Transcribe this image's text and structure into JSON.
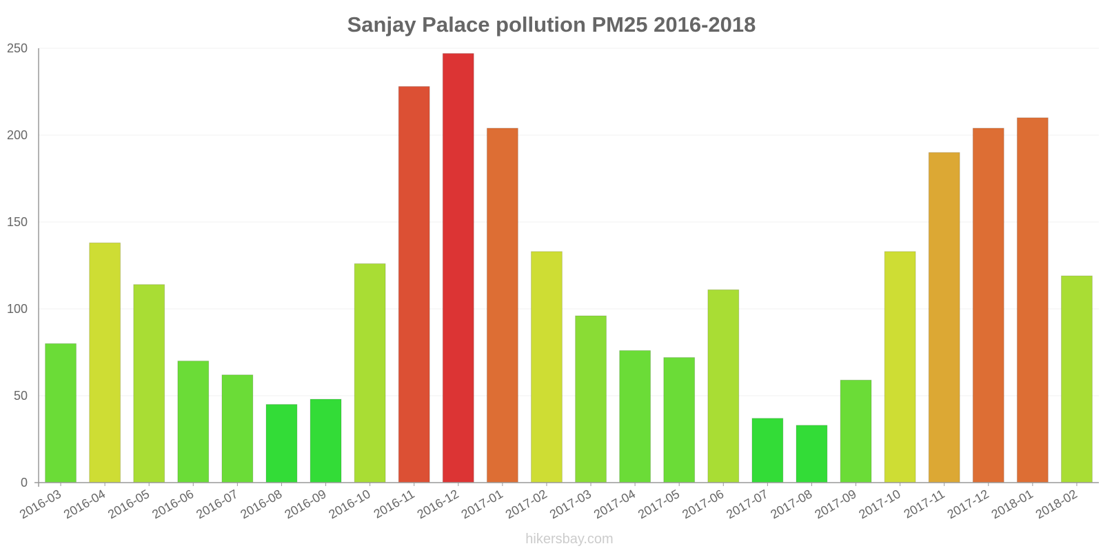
{
  "chart_data": {
    "type": "bar",
    "title": "Sanjay Palace pollution PM25 2016-2018",
    "xlabel": "",
    "ylabel": "",
    "ylim": [
      0,
      250
    ],
    "yticks": [
      0,
      50,
      100,
      150,
      200,
      250
    ],
    "grid": true,
    "legend": "none",
    "categories": [
      "2016-03",
      "2016-04",
      "2016-05",
      "2016-06",
      "2016-07",
      "2016-08",
      "2016-09",
      "2016-10",
      "2016-11",
      "2016-12",
      "2017-01",
      "2017-02",
      "2017-03",
      "2017-04",
      "2017-05",
      "2017-06",
      "2017-07",
      "2017-08",
      "2017-09",
      "2017-10",
      "2017-11",
      "2017-12",
      "2018-01",
      "2018-02"
    ],
    "values": [
      80,
      138,
      114,
      70,
      62,
      45,
      48,
      126,
      228,
      247,
      204,
      133,
      96,
      76,
      72,
      111,
      37,
      33,
      59,
      133,
      190,
      204,
      210,
      119
    ],
    "bar_colors": [
      "#6bdc37",
      "#cedd34",
      "#a9dd34",
      "#6bdc37",
      "#6bdc37",
      "#33dc37",
      "#33dc37",
      "#a9dd34",
      "#dc5034",
      "#dc3434",
      "#dd6e34",
      "#cedd34",
      "#8adc35",
      "#6bdc37",
      "#6bdc37",
      "#a9dd34",
      "#33dc37",
      "#33dc37",
      "#6bdc37",
      "#cedd34",
      "#dca834",
      "#dd6e34",
      "#dd6e34",
      "#a9dd34"
    ]
  },
  "watermark": "hikersbay.com",
  "colors": {
    "axis": "#999999",
    "grid": "#f2f2f2",
    "text": "#666666"
  }
}
